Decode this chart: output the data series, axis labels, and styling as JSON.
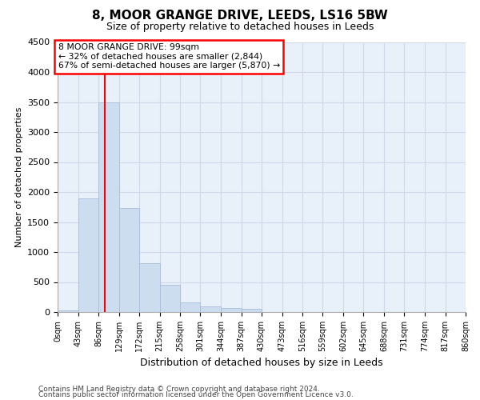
{
  "title": "8, MOOR GRANGE DRIVE, LEEDS, LS16 5BW",
  "subtitle": "Size of property relative to detached houses in Leeds",
  "xlabel": "Distribution of detached houses by size in Leeds",
  "ylabel": "Number of detached properties",
  "bar_color": "#ccddf0",
  "bar_edgecolor": "#aabbd8",
  "grid_color": "#d0d8e8",
  "plot_bg_color": "#e8f0fa",
  "background_color": "#ffffff",
  "bin_edges": [
    0,
    43,
    86,
    129,
    172,
    215,
    258,
    301,
    344,
    387,
    430,
    473,
    516,
    559,
    602,
    645,
    688,
    731,
    774,
    817,
    860
  ],
  "bar_heights": [
    25,
    1900,
    3490,
    1740,
    820,
    450,
    155,
    100,
    70,
    60,
    0,
    0,
    0,
    0,
    0,
    0,
    0,
    0,
    0,
    0
  ],
  "ylim": [
    0,
    4500
  ],
  "yticks": [
    0,
    500,
    1000,
    1500,
    2000,
    2500,
    3000,
    3500,
    4000,
    4500
  ],
  "red_line_x": 99,
  "annotation_line1": "8 MOOR GRANGE DRIVE: 99sqm",
  "annotation_line2": "← 32% of detached houses are smaller (2,844)",
  "annotation_line3": "67% of semi-detached houses are larger (5,870) →",
  "footnote1": "Contains HM Land Registry data © Crown copyright and database right 2024.",
  "footnote2": "Contains public sector information licensed under the Open Government Licence v3.0."
}
